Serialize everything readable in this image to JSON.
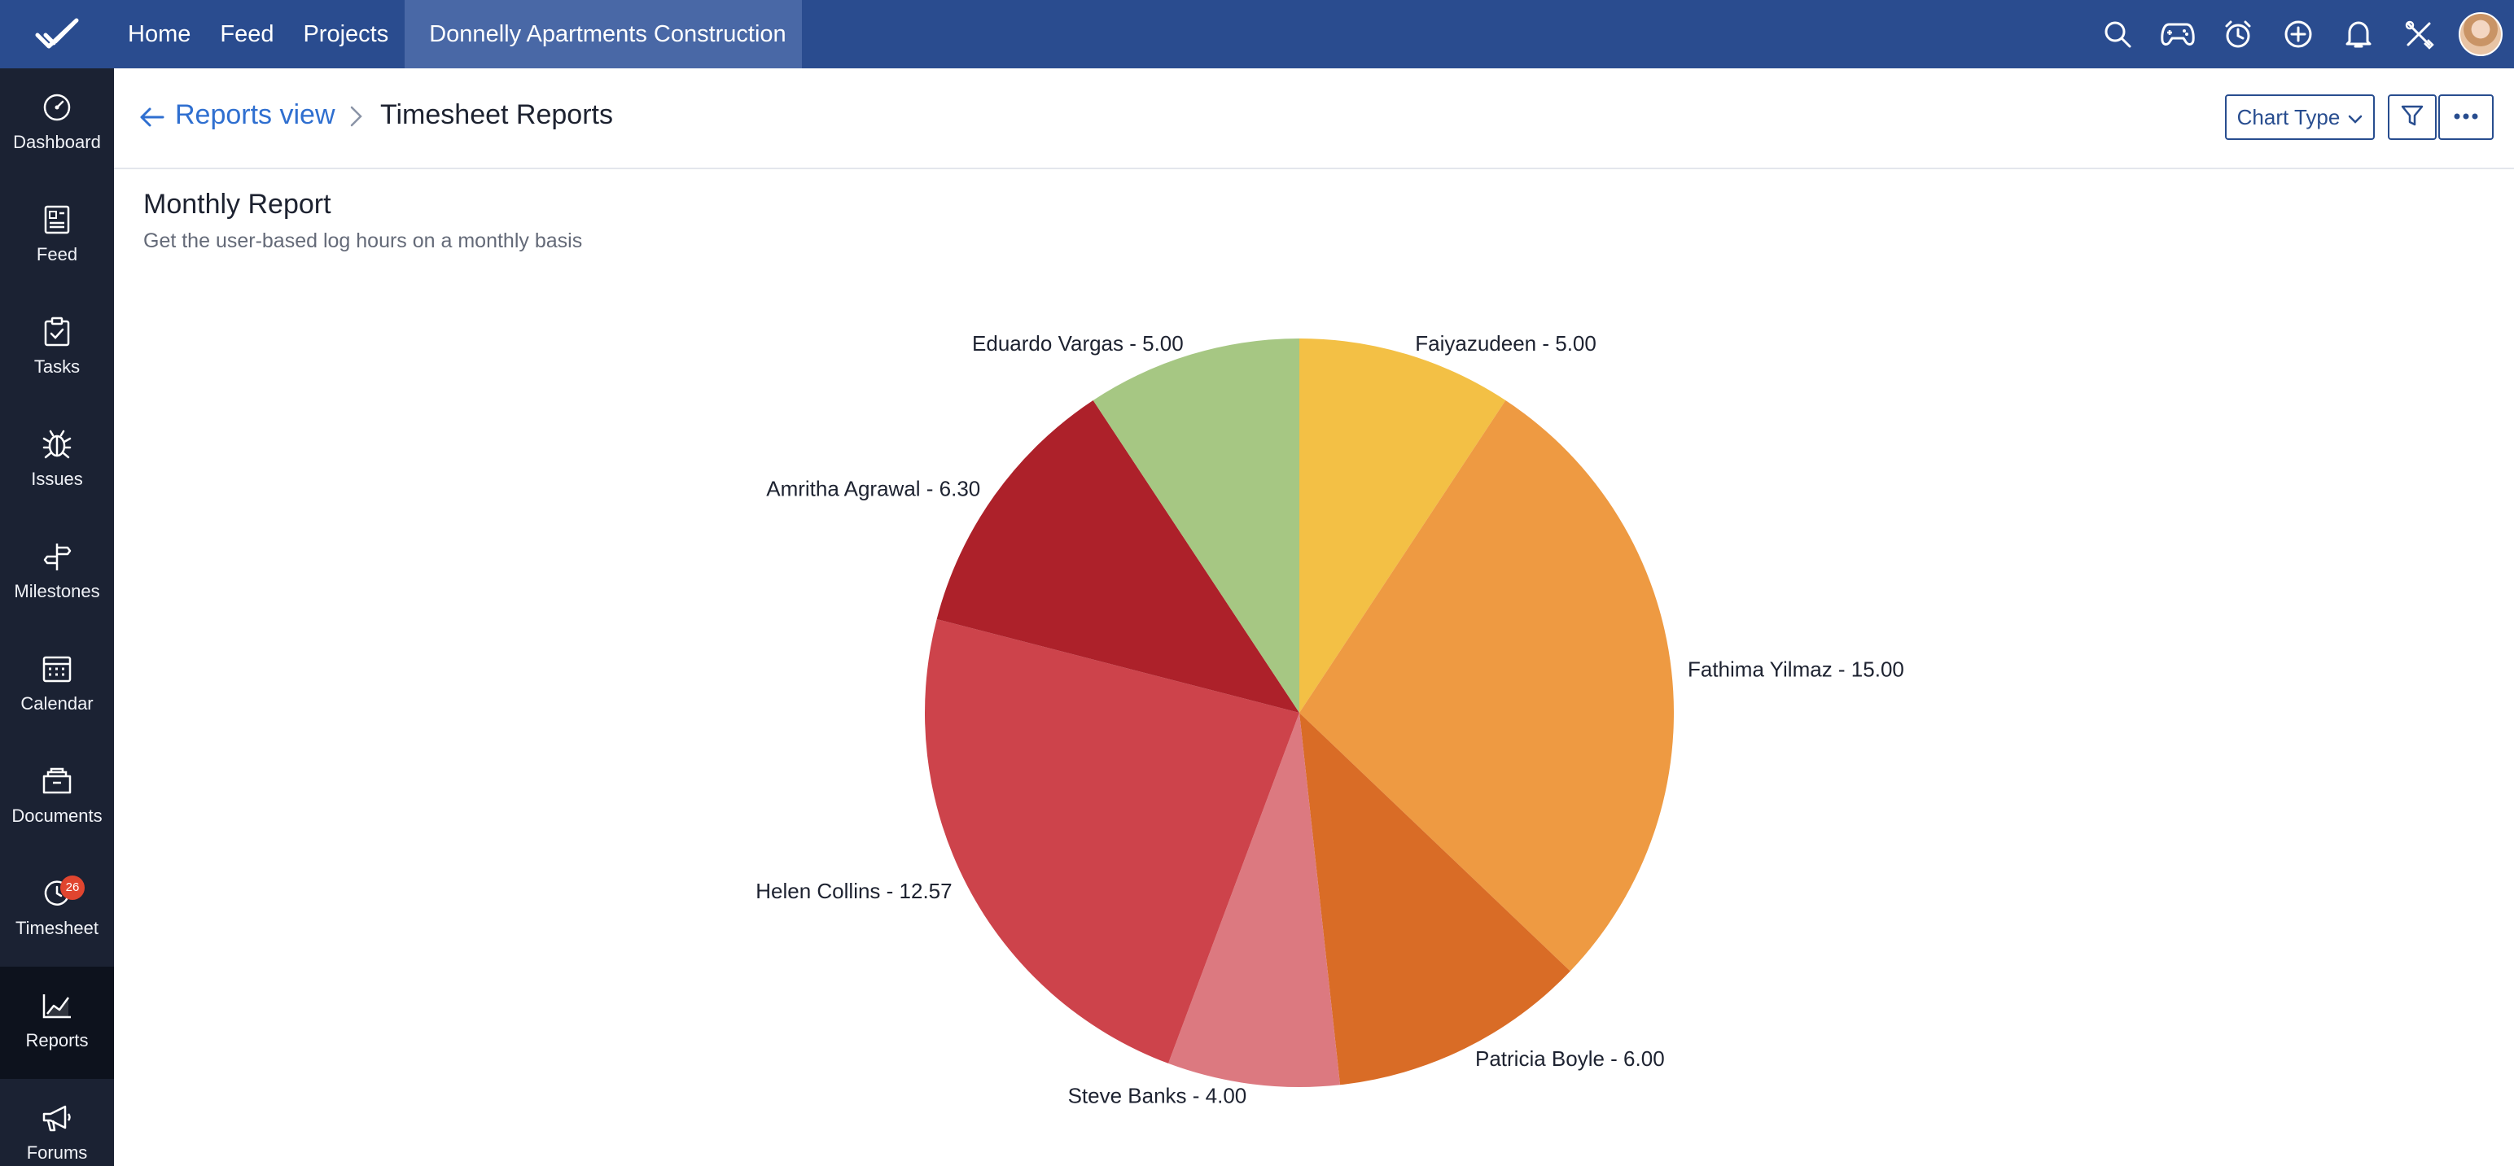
{
  "topbar": {
    "nav": [
      "Home",
      "Feed",
      "Projects"
    ],
    "project": "Donnelly Apartments Construction",
    "icons": [
      "search-icon",
      "gamepad-icon",
      "timer-icon",
      "add-icon",
      "bell-icon",
      "tools-icon"
    ]
  },
  "sidebar": {
    "items": [
      {
        "label": "Dashboard",
        "icon": "dashboard-icon"
      },
      {
        "label": "Feed",
        "icon": "feed-icon"
      },
      {
        "label": "Tasks",
        "icon": "tasks-icon"
      },
      {
        "label": "Issues",
        "icon": "bug-icon"
      },
      {
        "label": "Milestones",
        "icon": "milestone-icon"
      },
      {
        "label": "Calendar",
        "icon": "calendar-icon"
      },
      {
        "label": "Documents",
        "icon": "documents-icon"
      },
      {
        "label": "Timesheet",
        "icon": "timesheet-icon"
      },
      {
        "label": "Reports",
        "icon": "reports-icon"
      },
      {
        "label": "Forums",
        "icon": "megaphone-icon"
      }
    ],
    "active": "Reports",
    "timesheet_badge": "26"
  },
  "header": {
    "breadcrumb_link": "Reports view",
    "current": "Timesheet Reports",
    "chart_type_label": "Chart Type"
  },
  "report": {
    "title": "Monthly Report",
    "subtitle": "Get the user-based log hours on a monthly basis"
  },
  "colors": {
    "topbar": "#2a4c8f",
    "sidebar": "#1b2233",
    "link": "#2f6fd0"
  },
  "chart_data": {
    "type": "pie",
    "slices": [
      {
        "label": "Faiyazudeen",
        "value": 5.0,
        "display": "5.00",
        "color": "#f3c045"
      },
      {
        "label": "Fathima Yilmaz",
        "value": 15.0,
        "display": "15.00",
        "color": "#ee9a42"
      },
      {
        "label": "Patricia Boyle",
        "value": 6.0,
        "display": "6.00",
        "color": "#d96c26"
      },
      {
        "label": "Steve Banks",
        "value": 4.0,
        "display": "4.00",
        "color": "#dc7980"
      },
      {
        "label": "Helen Collins",
        "value": 12.57,
        "display": "12.57",
        "color": "#cd434b"
      },
      {
        "label": "Amritha Agrawal",
        "value": 6.3,
        "display": "6.30",
        "color": "#ad212a"
      },
      {
        "label": "Eduardo Vargas",
        "value": 5.0,
        "display": "5.00",
        "color": "#a6c783"
      }
    ]
  }
}
